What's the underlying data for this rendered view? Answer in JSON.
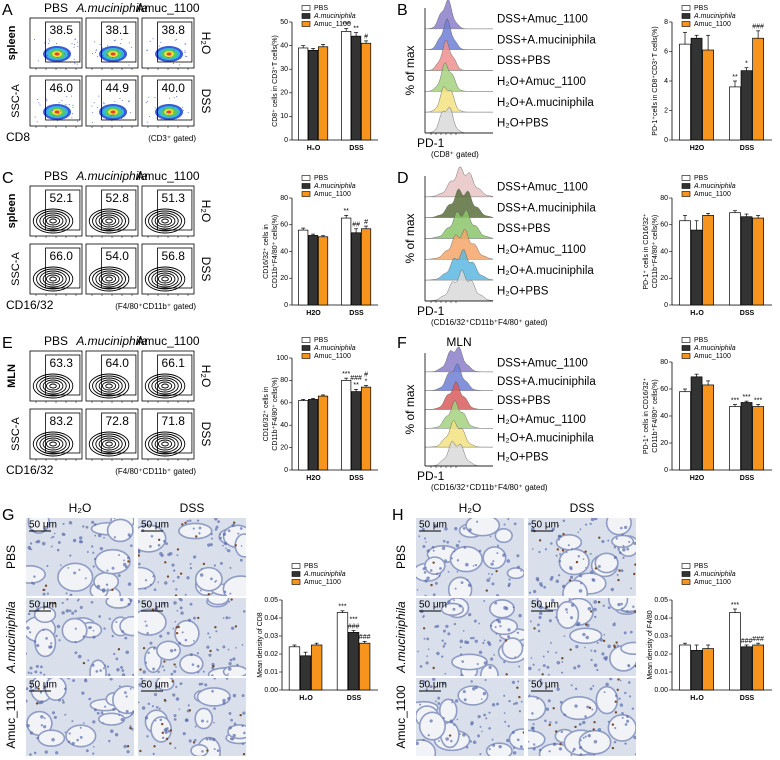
{
  "flow_panels": [
    {
      "letter": "A",
      "columns": [
        "PBS",
        "A.muciniphila",
        "Amuc_1100"
      ],
      "rows": [
        "H₂O",
        "DSS"
      ],
      "tissue": "spleen",
      "y_label": "SSC-A",
      "x_label": "CD8",
      "gate": "(CD3⁺ gated)",
      "style": "pseudocolor",
      "gate_values": [
        [
          "38.5",
          "38.1",
          "38.8"
        ],
        [
          "46.0",
          "44.9",
          "40.0"
        ]
      ]
    },
    {
      "letter": "C",
      "columns": [
        "PBS",
        "A.muciniphila",
        "Amuc_1100"
      ],
      "rows": [
        "H₂O",
        "DSS"
      ],
      "tissue": "spleen",
      "y_label": "SSC-A",
      "x_label": "CD16/32",
      "gate": "(F4/80⁺CD11b⁺ gated)",
      "style": "contour",
      "gate_values": [
        [
          "52.1",
          "52.8",
          "51.3"
        ],
        [
          "66.0",
          "54.0",
          "56.8"
        ]
      ]
    },
    {
      "letter": "E",
      "columns": [
        "PBS",
        "A.muciniphila",
        "Amuc_1100"
      ],
      "rows": [
        "H₂O",
        "DSS"
      ],
      "tissue": "MLN",
      "y_label": "SSC-A",
      "x_label": "CD16/32",
      "gate": "(F4/80⁺CD11b⁺ gated)",
      "style": "contour",
      "gate_values": [
        [
          "63.3",
          "64.0",
          "66.1"
        ],
        [
          "83.2",
          "72.8",
          "71.8"
        ]
      ]
    }
  ],
  "histogram_panels": [
    {
      "letter": "B",
      "labels": [
        "DSS+Amuc_1100",
        "DSS+A.muciniphila",
        "DSS+PBS",
        "H₂O+Amuc_1100",
        "H₂O+A.muciniphila",
        "H₂O+PBS"
      ],
      "colors": [
        "#8b7fc9",
        "#6f7fd6",
        "#ef8f8f",
        "#a5d17e",
        "#f2e27f",
        "#d9d9d9"
      ],
      "y_label": "% of max",
      "x_label": "PD-1",
      "gate": "(CD8⁺ gated)"
    },
    {
      "letter": "D",
      "labels": [
        "DSS+Amuc_1100",
        "DSS+A.muciniphila",
        "DSS+PBS",
        "H₂O+Amuc_1100",
        "H₂O+A.muciniphila",
        "H₂O+PBS"
      ],
      "colors": [
        "#e8c4c4",
        "#5a6e3c",
        "#8cc46a",
        "#f5a468",
        "#5cb8e2",
        "#d9d9d9"
      ],
      "y_label": "% of max",
      "x_label": "PD-1",
      "gate": "(CD16/32⁺CD11b⁺F4/80⁺ gated)"
    },
    {
      "letter": "F",
      "title": "MLN",
      "labels": [
        "DSS+Amuc_1100",
        "DSS+A.muciniphila",
        "DSS+PBS",
        "H₂O+Amuc_1100",
        "H₂O+A.muciniphila",
        "H₂O+PBS"
      ],
      "colors": [
        "#8b7fc9",
        "#6f7fd6",
        "#d85c5c",
        "#a5d17e",
        "#f2e27f",
        "#d9d9d9"
      ],
      "y_label": "% of max",
      "x_label": "PD-1",
      "gate": "(CD16/32⁺CD11b⁺F4/80⁺ gated)"
    }
  ],
  "ihc_panels": [
    {
      "letter": "G",
      "columns": [
        "H₂O",
        "DSS"
      ],
      "rows": [
        "PBS",
        "A.muciniphila",
        "Amuc_1100"
      ],
      "scale_bar": "50 μm"
    },
    {
      "letter": "H",
      "columns": [
        "H₂O",
        "DSS"
      ],
      "rows": [
        "PBS",
        "A.muciniphila",
        "Amuc_1100"
      ],
      "scale_bar": "50 μm"
    }
  ],
  "chart_data": [
    {
      "type": "bar",
      "ylabel": [
        "CD8⁺ cells in CD3⁺T cells(%)"
      ],
      "categories": [
        "H₂O",
        "DSS"
      ],
      "ylim": [
        0,
        50
      ],
      "yticks": [
        0,
        10,
        20,
        30,
        40,
        50
      ],
      "series": [
        {
          "name": "PBS",
          "color": "#ffffff",
          "values": [
            39,
            46
          ],
          "errors": [
            1,
            1.2
          ],
          "annotations": [
            null,
            [
              "***"
            ]
          ]
        },
        {
          "name": "A.muciniphila",
          "color": "#333333",
          "values": [
            38,
            44
          ],
          "errors": [
            0.8,
            1.5
          ],
          "annotations": [
            null,
            [
              "**"
            ]
          ]
        },
        {
          "name": "Amuc_1100",
          "color": "#f7941d",
          "values": [
            39.5,
            41
          ],
          "errors": [
            1,
            1
          ],
          "annotations": [
            null,
            [
              "#"
            ]
          ]
        }
      ]
    },
    {
      "type": "bar",
      "ylabel": [
        "PD-1⁺cells in CD8⁺CD3⁺T cells(%)"
      ],
      "categories": [
        "H2O",
        "DSS"
      ],
      "ylim": [
        0,
        8
      ],
      "yticks": [
        0,
        2,
        4,
        6,
        8
      ],
      "series": [
        {
          "name": "PBS",
          "color": "#ffffff",
          "values": [
            6.5,
            3.6
          ],
          "errors": [
            0.8,
            0.4
          ],
          "annotations": [
            null,
            [
              "**"
            ]
          ]
        },
        {
          "name": "A.muciniphila",
          "color": "#333333",
          "values": [
            6.9,
            4.7
          ],
          "errors": [
            0.2,
            0.2
          ],
          "annotations": [
            null,
            [
              "*"
            ]
          ]
        },
        {
          "name": "Amuc_1100",
          "color": "#f7941d",
          "values": [
            6.1,
            6.9
          ],
          "errors": [
            1,
            0.5
          ],
          "annotations": [
            null,
            [
              "###"
            ]
          ]
        }
      ]
    },
    {
      "type": "bar",
      "ylabel": [
        "CD16/32⁺ cells in",
        "CD11b⁺F4/80⁺ cells(%)"
      ],
      "categories": [
        "H2O",
        "DSS"
      ],
      "ylim": [
        0,
        80
      ],
      "yticks": [
        0,
        20,
        40,
        60,
        80
      ],
      "series": [
        {
          "name": "PBS",
          "color": "#ffffff",
          "values": [
            56,
            65
          ],
          "errors": [
            1.5,
            2
          ],
          "annotations": [
            null,
            [
              "**"
            ]
          ]
        },
        {
          "name": "A.muciniphila",
          "color": "#333333",
          "values": [
            52,
            54
          ],
          "errors": [
            1,
            3
          ],
          "annotations": [
            null,
            [
              "##"
            ]
          ]
        },
        {
          "name": "Amuc_1100",
          "color": "#f7941d",
          "values": [
            51,
            57
          ],
          "errors": [
            0.8,
            2
          ],
          "annotations": [
            null,
            [
              "#"
            ]
          ]
        }
      ]
    },
    {
      "type": "bar",
      "ylabel": [
        "PD-1⁺ cells in CD16/32⁺",
        "CD11b⁺F4/80⁺ cells(%)"
      ],
      "categories": [
        "H₂O",
        "DSS"
      ],
      "ylim": [
        0,
        80
      ],
      "yticks": [
        0,
        20,
        40,
        60,
        80
      ],
      "series": [
        {
          "name": "PBS",
          "color": "#ffffff",
          "values": [
            63,
            69
          ],
          "errors": [
            4,
            1.5
          ],
          "annotations": [
            null,
            null
          ]
        },
        {
          "name": "A.muciniphila",
          "color": "#333333",
          "values": [
            56,
            66
          ],
          "errors": [
            7,
            2
          ],
          "annotations": [
            null,
            null
          ]
        },
        {
          "name": "Amuc_1100",
          "color": "#f7941d",
          "values": [
            67,
            65
          ],
          "errors": [
            1.5,
            2
          ],
          "annotations": [
            null,
            null
          ]
        }
      ]
    },
    {
      "type": "bar",
      "ylabel": [
        "CD16/32⁺ cells in",
        "CD11b⁺F4/80⁺ cells(%)"
      ],
      "categories": [
        "H2O",
        "DSS"
      ],
      "ylim": [
        0,
        100
      ],
      "yticks": [
        0,
        20,
        40,
        60,
        80,
        100
      ],
      "series": [
        {
          "name": "PBS",
          "color": "#ffffff",
          "values": [
            62,
            80
          ],
          "errors": [
            1,
            2
          ],
          "annotations": [
            null,
            [
              "***"
            ]
          ]
        },
        {
          "name": "A.muciniphila",
          "color": "#333333",
          "values": [
            63,
            70
          ],
          "errors": [
            1,
            2
          ],
          "annotations": [
            null,
            [
              "###",
              "**"
            ]
          ]
        },
        {
          "name": "Amuc_1100",
          "color": "#f7941d",
          "values": [
            66,
            74
          ],
          "errors": [
            1,
            1.5
          ],
          "annotations": [
            null,
            [
              "#",
              "*"
            ]
          ]
        }
      ]
    },
    {
      "type": "bar",
      "ylabel": [
        "PD-1⁺ cells in CD16/32⁺",
        "CD11b⁺F4/80⁺ cells(%)"
      ],
      "categories": [
        "H2O",
        "DSS"
      ],
      "ylim": [
        0,
        80
      ],
      "yticks": [
        0,
        20,
        40,
        60,
        80
      ],
      "series": [
        {
          "name": "PBS",
          "color": "#ffffff",
          "values": [
            58,
            47
          ],
          "errors": [
            2,
            1.5
          ],
          "annotations": [
            null,
            [
              "***"
            ]
          ]
        },
        {
          "name": "A.muciniphila",
          "color": "#333333",
          "values": [
            69,
            50
          ],
          "errors": [
            2,
            1
          ],
          "annotations": [
            null,
            [
              "***"
            ]
          ]
        },
        {
          "name": "Amuc_1100",
          "color": "#f7941d",
          "values": [
            63,
            47
          ],
          "errors": [
            3,
            1.5
          ],
          "annotations": [
            null,
            [
              "***"
            ]
          ]
        }
      ]
    },
    {
      "type": "bar",
      "ylabel": [
        "Mean density of CD8"
      ],
      "categories": [
        "H₂O",
        "DSS"
      ],
      "ylim": [
        0,
        0.05
      ],
      "yticks": [
        {
          "value": 0,
          "label": "0.00"
        },
        {
          "value": 0.01,
          "label": "0.01"
        },
        {
          "value": 0.02,
          "label": "0.02"
        },
        {
          "value": 0.03,
          "label": "0.03"
        },
        {
          "value": 0.04,
          "label": "0.04"
        },
        {
          "value": 0.05,
          "label": "0.05"
        }
      ],
      "series": [
        {
          "name": "PBS",
          "color": "#ffffff",
          "values": [
            0.024,
            0.043
          ],
          "errors": [
            0.001,
            0.001
          ],
          "annotations": [
            null,
            [
              "***"
            ]
          ]
        },
        {
          "name": "A.muciniphila",
          "color": "#333333",
          "values": [
            0.019,
            0.032
          ],
          "errors": [
            0.002,
            0.001
          ],
          "annotations": [
            null,
            [
              "***",
              "###"
            ]
          ]
        },
        {
          "name": "Amuc_1100",
          "color": "#f7941d",
          "values": [
            0.025,
            0.026
          ],
          "errors": [
            0.001,
            0.001
          ],
          "annotations": [
            null,
            [
              "###"
            ]
          ]
        }
      ]
    },
    {
      "type": "bar",
      "ylabel": [
        "Mean density of F4/80"
      ],
      "categories": [
        "H₂O",
        "DSS"
      ],
      "ylim": [
        0,
        0.05
      ],
      "yticks": [
        {
          "value": 0,
          "label": "0.00"
        },
        {
          "value": 0.01,
          "label": "0.01"
        },
        {
          "value": 0.02,
          "label": "0.02"
        },
        {
          "value": 0.03,
          "label": "0.03"
        },
        {
          "value": 0.04,
          "label": "0.04"
        },
        {
          "value": 0.05,
          "label": "0.05"
        }
      ],
      "series": [
        {
          "name": "PBS",
          "color": "#ffffff",
          "values": [
            0.025,
            0.043
          ],
          "errors": [
            0.001,
            0.002
          ],
          "annotations": [
            null,
            [
              "***"
            ]
          ]
        },
        {
          "name": "A.muciniphila",
          "color": "#333333",
          "values": [
            0.022,
            0.024
          ],
          "errors": [
            0.003,
            0.001
          ],
          "annotations": [
            null,
            [
              "###"
            ]
          ]
        },
        {
          "name": "Amuc_1100",
          "color": "#f7941d",
          "values": [
            0.023,
            0.025
          ],
          "errors": [
            0.002,
            0.001
          ],
          "annotations": [
            null,
            [
              "###"
            ]
          ]
        }
      ]
    }
  ]
}
